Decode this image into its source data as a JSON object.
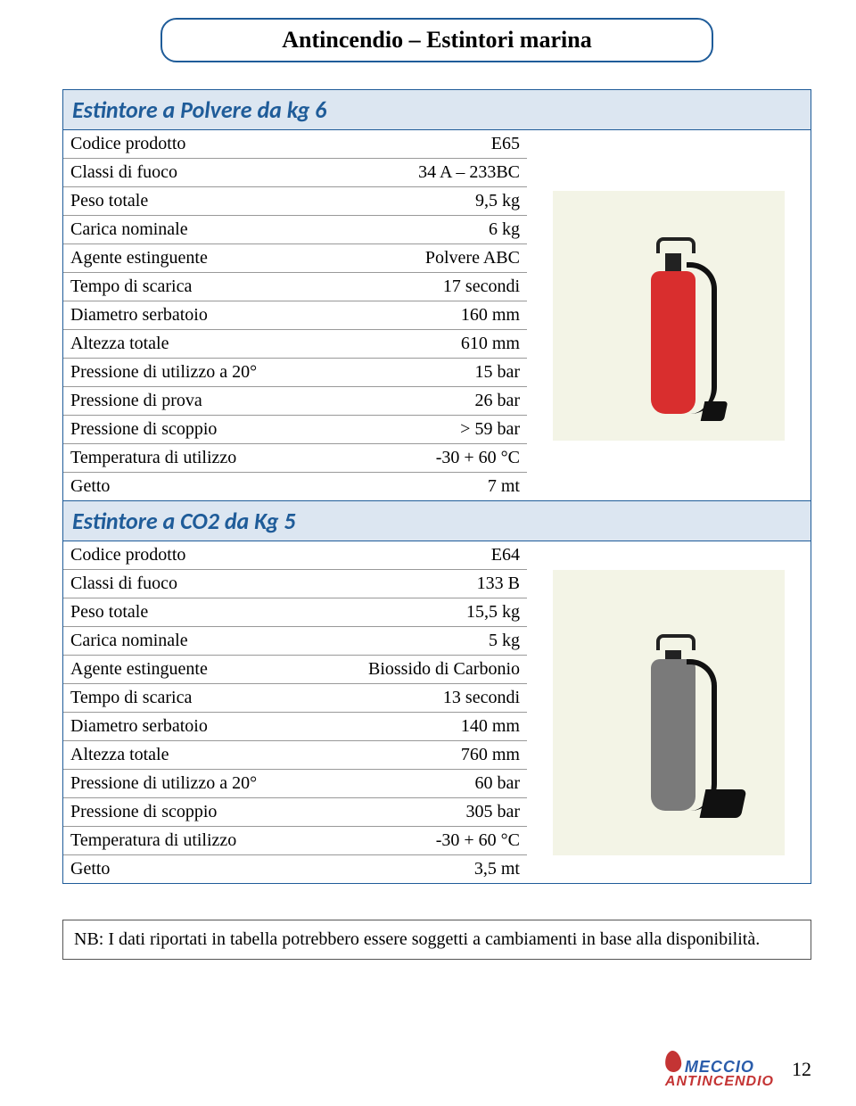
{
  "header": "Antincendio – Estintori marina",
  "section1": {
    "title": "Estintore a Polvere da kg 6",
    "rows": [
      {
        "label": "Codice prodotto",
        "value": "E65"
      },
      {
        "label": "Classi di fuoco",
        "value": "34 A – 233BC"
      },
      {
        "label": "Peso totale",
        "value": "9,5 kg"
      },
      {
        "label": "Carica nominale",
        "value": "6 kg"
      },
      {
        "label": "Agente estinguente",
        "value": "Polvere ABC"
      },
      {
        "label": "Tempo di scarica",
        "value": "17 secondi"
      },
      {
        "label": "Diametro serbatoio",
        "value": "160 mm"
      },
      {
        "label": "Altezza totale",
        "value": "610 mm"
      },
      {
        "label": "Pressione di utilizzo a 20°",
        "value": "15 bar"
      },
      {
        "label": "Pressione di prova",
        "value": "26 bar"
      },
      {
        "label": "Pressione di scoppio",
        "value": "> 59 bar"
      },
      {
        "label": "Temperatura di utilizzo",
        "value": "-30 + 60 °C"
      },
      {
        "label": "Getto",
        "value": "7 mt"
      }
    ]
  },
  "section2": {
    "title": "Estintore a CO2 da Kg 5",
    "rows": [
      {
        "label": "Codice prodotto",
        "value": "E64"
      },
      {
        "label": "Classi di fuoco",
        "value": "133 B"
      },
      {
        "label": "Peso totale",
        "value": "15,5 kg"
      },
      {
        "label": "Carica nominale",
        "value": "5 kg"
      },
      {
        "label": "Agente estinguente",
        "value": "Biossido di Carbonio"
      },
      {
        "label": "Tempo di scarica",
        "value": "13 secondi"
      },
      {
        "label": "Diametro serbatoio",
        "value": "140 mm"
      },
      {
        "label": "Altezza totale",
        "value": "760 mm"
      },
      {
        "label": "Pressione di utilizzo a 20°",
        "value": "60 bar"
      },
      {
        "label": "Pressione di scoppio",
        "value": "305 bar"
      },
      {
        "label": "Temperatura di utilizzo",
        "value": "-30 + 60 °C"
      },
      {
        "label": "Getto",
        "value": "3,5 mt"
      }
    ]
  },
  "note": "NB: I dati riportati in tabella potrebbero essere soggetti a cambiamenti in base alla disponibilità.",
  "footer": {
    "brand1": "MECCIO",
    "brand2": "ANTINCENDIO",
    "page": "12"
  },
  "colors": {
    "accent": "#1f5c99",
    "section_bg": "#dce6f1",
    "img_bg": "#f3f4e6",
    "ext_red": "#d92e2e",
    "ext_gray": "#7a7a7a"
  }
}
